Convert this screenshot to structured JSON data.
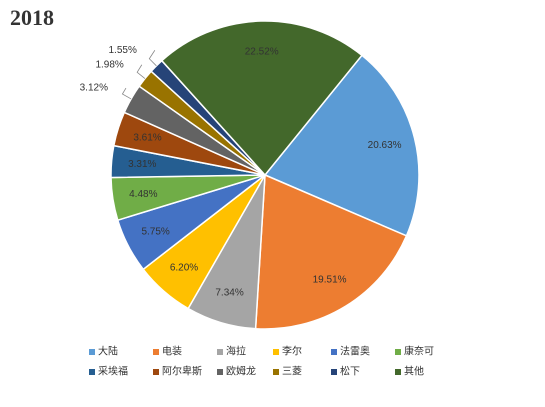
{
  "chart_data": {
    "type": "pie",
    "title": "2018",
    "categories": [
      "大陆",
      "电装",
      "海拉",
      "李尔",
      "法雷奥",
      "康奈可",
      "采埃福",
      "阿尔卑斯",
      "欧姆龙",
      "三菱",
      "松下",
      "其他"
    ],
    "values": [
      20.63,
      19.51,
      7.34,
      6.2,
      5.75,
      4.48,
      3.31,
      3.61,
      3.12,
      1.98,
      1.55,
      22.52
    ],
    "value_labels": [
      "20.63%",
      "19.51%",
      "7.34%",
      "6.20%",
      "5.75%",
      "4.48%",
      "3.31%",
      "3.61%",
      "3.12%",
      "1.98%",
      "1.55%",
      "22.52%"
    ],
    "colors": [
      "#5b9bd5",
      "#ed7d31",
      "#a5a5a5",
      "#ffc000",
      "#4472c4",
      "#70ad47",
      "#255e91",
      "#9e480e",
      "#636363",
      "#997300",
      "#264478",
      "#43682b"
    ],
    "legend": "bottom"
  }
}
